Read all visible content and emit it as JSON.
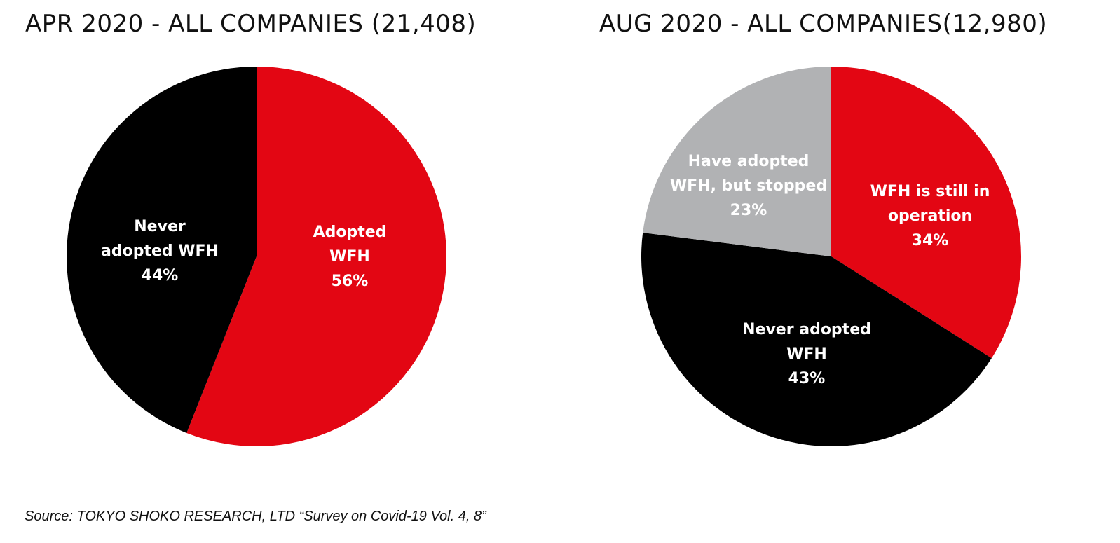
{
  "chart_data": [
    {
      "type": "pie",
      "title": "APR 2020 - ALL COMPANIES (21,408)",
      "slices": [
        {
          "label_lines": [
            "Adopted",
            "WFH",
            "56%"
          ],
          "value": 56,
          "color": "#e30613"
        },
        {
          "label_lines": [
            "Never",
            "adopted WFH",
            "44%"
          ],
          "value": 44,
          "color": "#000000"
        }
      ]
    },
    {
      "type": "pie",
      "title": "AUG 2020 -  ALL COMPANIES(12,980)",
      "slices": [
        {
          "label_lines": [
            "WFH is still in",
            "operation",
            "34%"
          ],
          "value": 34,
          "color": "#e30613"
        },
        {
          "label_lines": [
            "Never adopted",
            "WFH",
            "43%"
          ],
          "value": 43,
          "color": "#000000"
        },
        {
          "label_lines": [
            "Have adopted",
            "WFH, but stopped",
            "23%"
          ],
          "value": 23,
          "color": "#b1b2b4"
        }
      ]
    }
  ],
  "source": "Source:  TOKYO SHOKO RESEARCH, LTD “Survey on Covid-19 Vol. 4, 8”"
}
